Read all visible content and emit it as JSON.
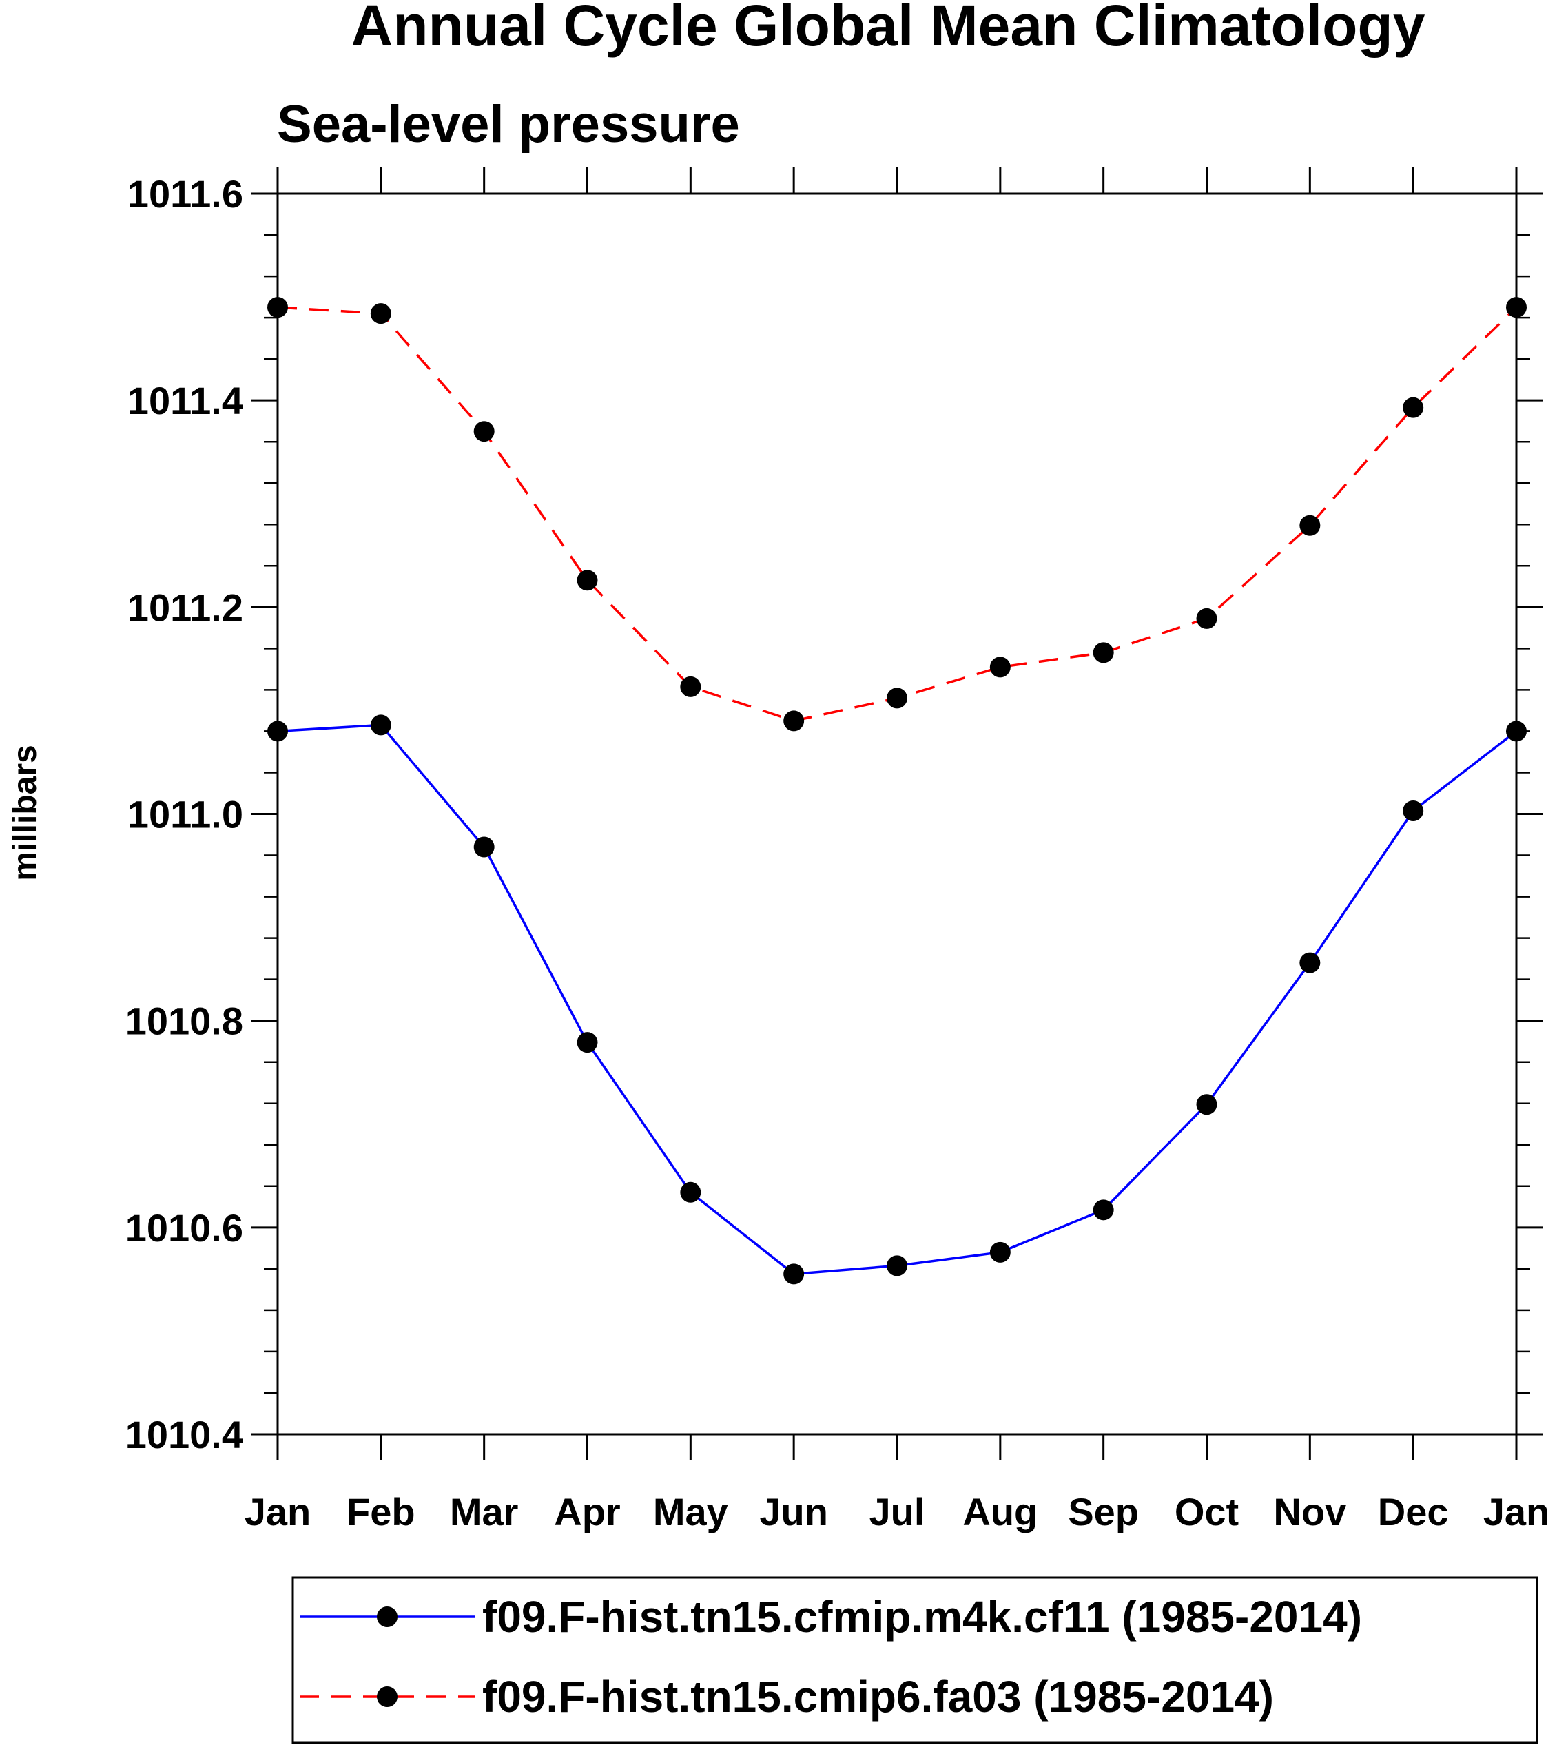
{
  "chart_data": {
    "type": "line",
    "title": "Annual Cycle Global Mean Climatology",
    "subtitle": "Sea-level pressure",
    "xlabel": "",
    "ylabel": "millibars",
    "ylim": [
      1010.4,
      1011.6
    ],
    "y_ticks": [
      "1010.4",
      "1010.6",
      "1010.8",
      "1011.0",
      "1011.2",
      "1011.4",
      "1011.6"
    ],
    "categories": [
      "Jan",
      "Feb",
      "Mar",
      "Apr",
      "May",
      "Jun",
      "Jul",
      "Aug",
      "Sep",
      "Oct",
      "Nov",
      "Dec",
      "Jan"
    ],
    "grid": false,
    "legend_position": "bottom",
    "series": [
      {
        "name": "f09.F-hist.tn15.cfmip.m4k.cf11 (1985-2014)",
        "color": "#0000ff",
        "line_style": "solid",
        "marker": "filled-circle",
        "values": [
          1011.08,
          1011.086,
          1010.968,
          1010.779,
          1010.634,
          1010.555,
          1010.563,
          1010.576,
          1010.617,
          1010.719,
          1010.856,
          1011.003,
          1011.08
        ]
      },
      {
        "name": "f09.F-hist.tn15.cmip6.fa03 (1985-2014)",
        "color": "#ff0000",
        "line_style": "dashed",
        "marker": "filled-circle",
        "values": [
          1011.49,
          1011.484,
          1011.37,
          1011.226,
          1011.123,
          1011.09,
          1011.112,
          1011.142,
          1011.156,
          1011.189,
          1011.279,
          1011.393,
          1011.49
        ]
      }
    ]
  }
}
